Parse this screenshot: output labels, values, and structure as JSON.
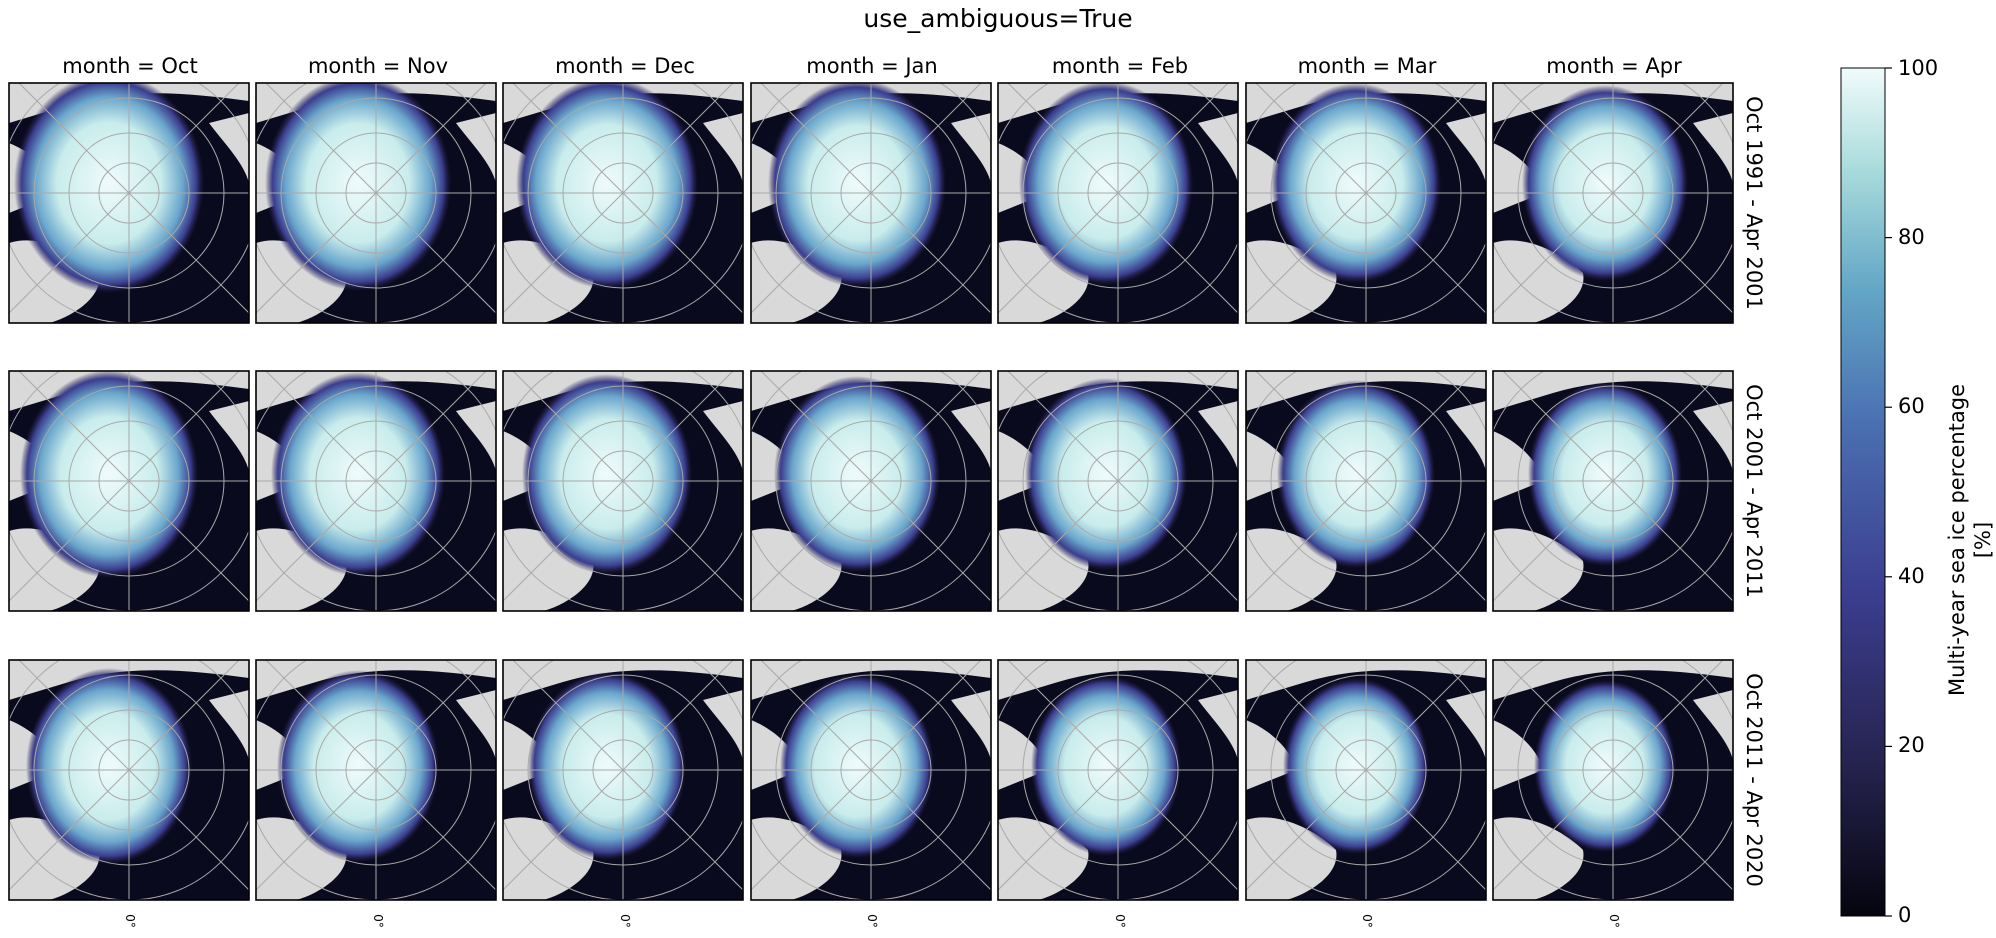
{
  "figure": {
    "title": "use_ambiguous=True",
    "columns": [
      "month = Oct",
      "month = Nov",
      "month = Dec",
      "month = Jan",
      "month = Feb",
      "month = Mar",
      "month = Apr"
    ],
    "rows": [
      "Oct 1991 - Apr 2001",
      "Oct 2001 - Apr 2011",
      "Oct 2011 - Apr 2020"
    ],
    "longitude_tick": "0°"
  },
  "colorbar": {
    "label_line1": "Multi-year sea ice percentage",
    "label_line2": "[%]",
    "ticks": [
      "0",
      "20",
      "40",
      "60",
      "80",
      "100"
    ],
    "range": [
      0,
      100
    ],
    "colors": [
      "#05050f",
      "#26234f",
      "#3b3d8f",
      "#4a6fb1",
      "#63a7c6",
      "#a9dbdc",
      "#f0fbfb"
    ]
  },
  "map_style": {
    "land_color": "#d9d9d9",
    "ocean_low_color": "#0a0a1e",
    "grid_color": "#a9a9a9",
    "projection": "north polar stereographic"
  },
  "chart_data": {
    "type": "heatmap",
    "title": "use_ambiguous=True",
    "x_facets": [
      "Oct",
      "Nov",
      "Dec",
      "Jan",
      "Feb",
      "Mar",
      "Apr"
    ],
    "y_facets": [
      "Oct 1991 - Apr 2001",
      "Oct 2001 - Apr 2011",
      "Oct 2011 - Apr 2020"
    ],
    "value_label": "Multi-year sea ice percentage [%]",
    "value_range": [
      0,
      100
    ],
    "colorbar_ticks": [
      0,
      20,
      40,
      60,
      80,
      100
    ]
  }
}
